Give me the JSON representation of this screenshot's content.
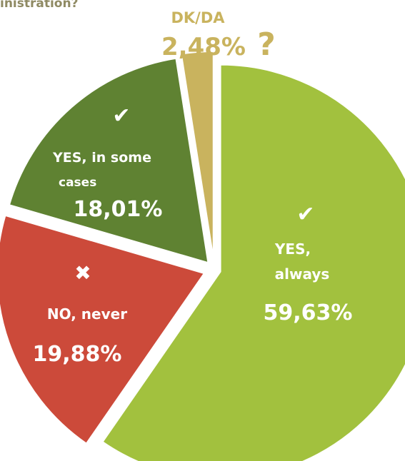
{
  "title_fragment": "inistration?",
  "chart_data": {
    "type": "pie",
    "title": "",
    "slices": [
      {
        "name": "YES, always",
        "label_lines": [
          "YES,",
          "always"
        ],
        "value": 59.63,
        "value_label": "59,63%",
        "color": "#a2c13e",
        "marker": "✔"
      },
      {
        "name": "NO, never",
        "label_lines": [
          "NO, never"
        ],
        "value": 19.88,
        "value_label": "19,88%",
        "color": "#cc4a3a",
        "marker": "✖"
      },
      {
        "name": "YES, in some cases",
        "label_lines": [
          "YES, in some",
          "cases"
        ],
        "value": 18.01,
        "value_label": "18,01%",
        "color": "#5f8232",
        "marker": "✔"
      },
      {
        "name": "DK/DA",
        "label_lines": [
          "DK/DA"
        ],
        "value": 2.48,
        "value_label": "2,48%",
        "color": "#c9b35e",
        "marker": "?"
      }
    ]
  }
}
